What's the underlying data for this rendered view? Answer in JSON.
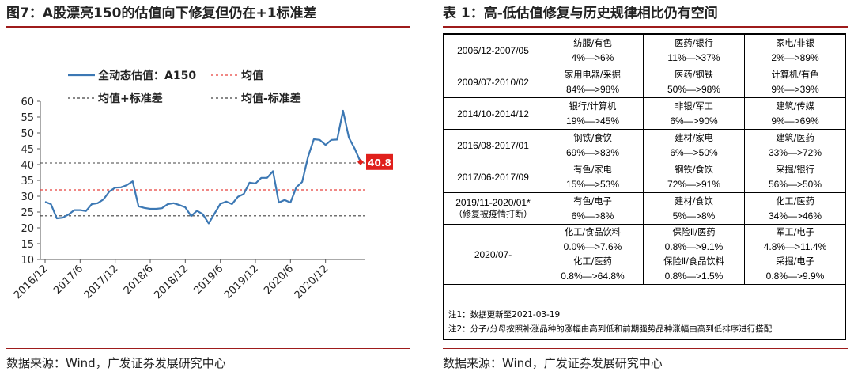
{
  "left": {
    "title": "图7：A股漂亮150的估值向下修复但仍在+1标准差",
    "source": "数据来源：Wind，广发证券发展研究中心"
  },
  "right": {
    "title": "表 1：高-低估值修复与历史规律相比仍有空间",
    "source": "数据来源：Wind，广发证券发展研究中心",
    "rows": [
      {
        "period": "2006/12-2007/05",
        "cells": [
          [
            "纺服/有色",
            "4%—>6%"
          ],
          [
            "医药/银行",
            "11%—>37%"
          ],
          [
            "家电/非银",
            "2%—>89%"
          ]
        ]
      },
      {
        "period": "2009/07-2010/02",
        "cells": [
          [
            "家用电器/采掘",
            "84%—>98%"
          ],
          [
            "医药/钢铁",
            "50%—>98%"
          ],
          [
            "计算机/有色",
            "9%—>39%"
          ]
        ]
      },
      {
        "period": "2014/10-2014/12",
        "cells": [
          [
            "银行/计算机",
            "19%—>45%"
          ],
          [
            "非银/军工",
            "6%—>90%"
          ],
          [
            "建筑/传媒",
            "9%—>69%"
          ]
        ]
      },
      {
        "period": "2016/08-2017/01",
        "cells": [
          [
            "钢铁/食饮",
            "69%—>83%"
          ],
          [
            "建材/家电",
            "6%—>50%"
          ],
          [
            "建筑/医药",
            "33%—>72%"
          ]
        ]
      },
      {
        "period": "2017/06-2017/09",
        "cells": [
          [
            "有色/家电",
            "15%—>53%"
          ],
          [
            "钢铁/食饮",
            "72%—>91%"
          ],
          [
            "采掘/银行",
            "56%—>50%"
          ]
        ]
      },
      {
        "period": "2019/11-2020/01*",
        "period_note": "（修复被疫情打断）",
        "cells": [
          [
            "有色/电子",
            "6%—>8%"
          ],
          [
            "建材/食饮",
            "5%—>8%"
          ],
          [
            "化工/医药",
            "34%—>46%"
          ]
        ]
      }
    ],
    "last_period": "2020/07-",
    "last_rows": [
      [
        [
          "化工/食品饮料",
          "0.0%—>7.6%"
        ],
        [
          "保险Ⅱ/医药",
          "0.8%—>9.1%"
        ],
        [
          "军工/电子",
          "4.8%—>11.4%"
        ]
      ],
      [
        [
          "化工/医药",
          "0.8%—>64.8%"
        ],
        [
          "保险Ⅱ/食品饮料",
          "0.8%—>1.5%"
        ],
        [
          "采掘/电子",
          "0.8%—>9.9%"
        ]
      ]
    ],
    "notes": [
      "注1：数据更新至2021-03-19",
      "注2：分子/分母按照补涨品种的涨幅由高到低和前期强势品种涨幅由高到低排序进行搭配"
    ]
  },
  "chart_data": {
    "type": "line",
    "series_name": "全动态估值：A150",
    "legend": {
      "mean": "均值",
      "mean_plus_std": "均值+标准差",
      "mean_minus_std": "均值-标准差"
    },
    "y_ticks": [
      10,
      15,
      20,
      25,
      30,
      35,
      40,
      45,
      50,
      55,
      60
    ],
    "ylim": [
      10,
      60
    ],
    "x_tick_labels": [
      "2016/12",
      "2017/6",
      "2017/12",
      "2018/6",
      "2018/12",
      "2019/6",
      "2019/12",
      "2020/6",
      "2020/12"
    ],
    "x_start": "2016/12",
    "x_end": "2021/03",
    "mean": 32,
    "mean_plus_std": 40.5,
    "mean_minus_std": 23.8,
    "last_value_label": "40.8",
    "colors": {
      "series": "#3c78b4",
      "mean": "#e8413c",
      "band": "#404040",
      "label_bg": "#e0201c"
    },
    "values": [
      [
        0,
        28.2
      ],
      [
        1,
        27.5
      ],
      [
        2,
        23.0
      ],
      [
        3,
        23.2
      ],
      [
        4,
        24.2
      ],
      [
        5,
        25.6
      ],
      [
        6,
        25.6
      ],
      [
        7,
        25.3
      ],
      [
        8,
        27.5
      ],
      [
        9,
        27.8
      ],
      [
        10,
        29.0
      ],
      [
        11,
        31.5
      ],
      [
        12,
        32.7
      ],
      [
        13,
        32.8
      ],
      [
        14,
        33.5
      ],
      [
        15,
        34.7
      ],
      [
        16,
        26.8
      ],
      [
        17,
        26.3
      ],
      [
        18,
        26.0
      ],
      [
        19,
        26.0
      ],
      [
        20,
        26.2
      ],
      [
        21,
        27.5
      ],
      [
        22,
        27.8
      ],
      [
        23,
        27.2
      ],
      [
        24,
        26.5
      ],
      [
        25,
        23.7
      ],
      [
        26,
        25.4
      ],
      [
        27,
        24.3
      ],
      [
        28,
        21.4
      ],
      [
        29,
        24.5
      ],
      [
        30,
        27.6
      ],
      [
        31,
        28.3
      ],
      [
        32,
        27.5
      ],
      [
        33,
        29.8
      ],
      [
        34,
        30.7
      ],
      [
        35,
        34.3
      ],
      [
        36,
        34.0
      ],
      [
        37,
        35.8
      ],
      [
        38,
        35.8
      ],
      [
        39,
        37.9
      ],
      [
        40,
        28.0
      ],
      [
        41,
        28.8
      ],
      [
        42,
        28.0
      ],
      [
        43,
        32.8
      ],
      [
        44,
        34.5
      ],
      [
        45,
        42.4
      ],
      [
        46,
        48.0
      ],
      [
        47,
        47.8
      ],
      [
        48,
        46.2
      ],
      [
        49,
        47.8
      ],
      [
        50,
        47.9
      ],
      [
        51,
        57.0
      ],
      [
        52,
        48.5
      ],
      [
        53,
        45.0
      ],
      [
        54,
        40.8
      ]
    ]
  }
}
